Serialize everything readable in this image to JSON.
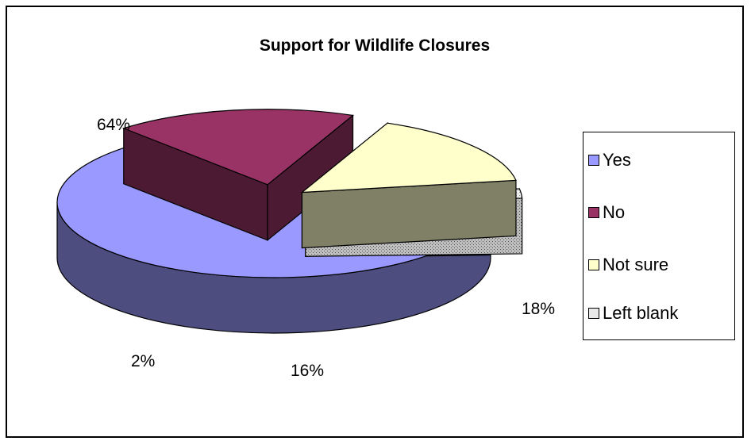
{
  "chart_data": {
    "type": "pie",
    "title": "Support for Wildlife Closures",
    "categories": [
      "Yes",
      "No",
      "Not sure",
      "Left blank"
    ],
    "values": [
      64,
      18,
      16,
      2
    ],
    "value_labels": [
      "64%",
      "18%",
      "16%",
      "2%"
    ],
    "style": "3d-exploded",
    "legend_position": "right",
    "colors": {
      "Yes": "#9999FF",
      "No": "#993366",
      "Not sure": "#FFFFCC",
      "Left blank": "#E0E0E0"
    }
  },
  "legend": [
    {
      "label": "Yes",
      "color": "#9999FF"
    },
    {
      "label": "No",
      "color": "#993366"
    },
    {
      "label": "Not sure",
      "color": "#FFFFCC"
    },
    {
      "label": "Left blank",
      "color": "#E0E0E0"
    }
  ]
}
